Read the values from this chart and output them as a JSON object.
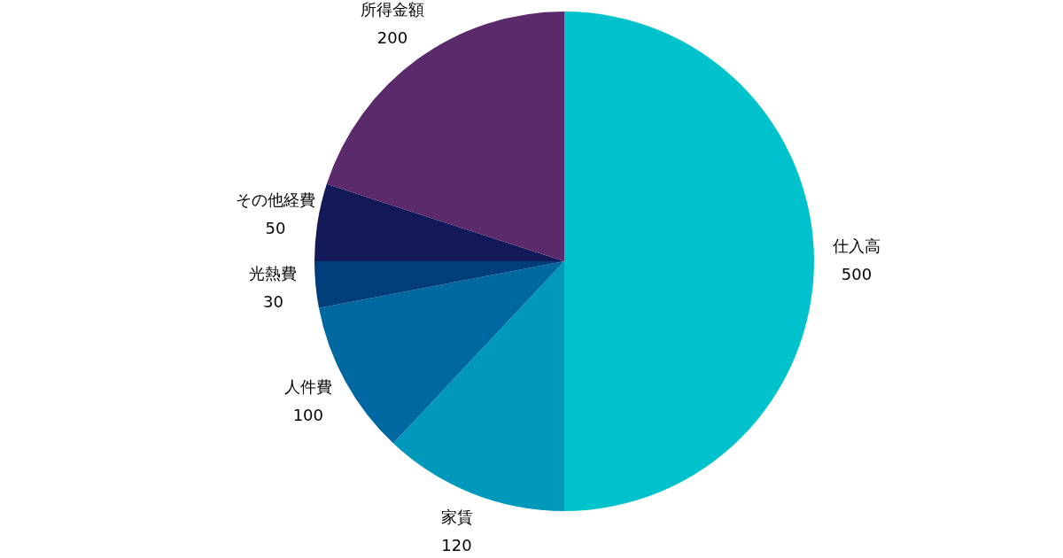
{
  "chart_data": {
    "type": "pie",
    "categories": [
      "仕入高",
      "家賃",
      "人件費",
      "光熱費",
      "その他経費",
      "所得金額"
    ],
    "values": [
      500,
      120,
      100,
      30,
      50,
      200
    ],
    "colors": [
      "#00c2cc",
      "#0099bb",
      "#0068a0",
      "#003d7a",
      "#121858",
      "#5a2a6a"
    ],
    "data_labels": true,
    "legend": false
  }
}
